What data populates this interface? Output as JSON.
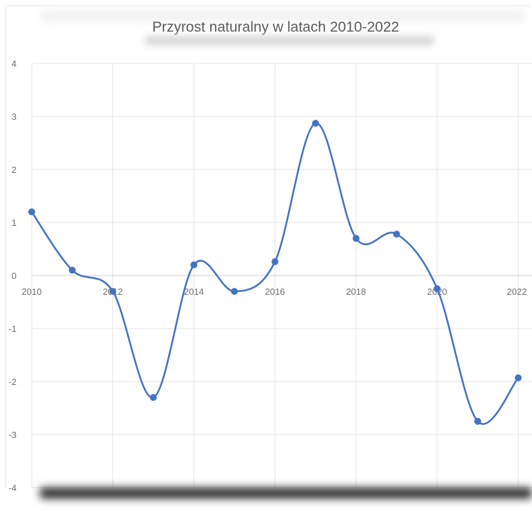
{
  "chart_data": {
    "type": "line",
    "title": "Przyrost naturalny w latach 2010-2022",
    "xlabel": "",
    "ylabel": "",
    "x": [
      2010,
      2011,
      2012,
      2013,
      2014,
      2015,
      2016,
      2017,
      2018,
      2019,
      2020,
      2021,
      2022
    ],
    "series": [
      {
        "values": [
          1.2,
          0.1,
          -0.3,
          -2.3,
          0.2,
          -0.3,
          0.26,
          2.87,
          0.7,
          0.78,
          -0.25,
          -2.75,
          -1.93
        ]
      }
    ],
    "x_ticks": [
      2010,
      2012,
      2014,
      2016,
      2018,
      2020,
      2022
    ],
    "y_ticks": [
      4,
      3,
      2,
      1,
      0,
      -1,
      -2,
      -3,
      -4
    ],
    "xlim": [
      2010,
      2022
    ],
    "ylim": [
      -4,
      4
    ],
    "grid": true,
    "smooth": true,
    "line_color": "#4472c4",
    "marker_color": "#4472c4"
  }
}
